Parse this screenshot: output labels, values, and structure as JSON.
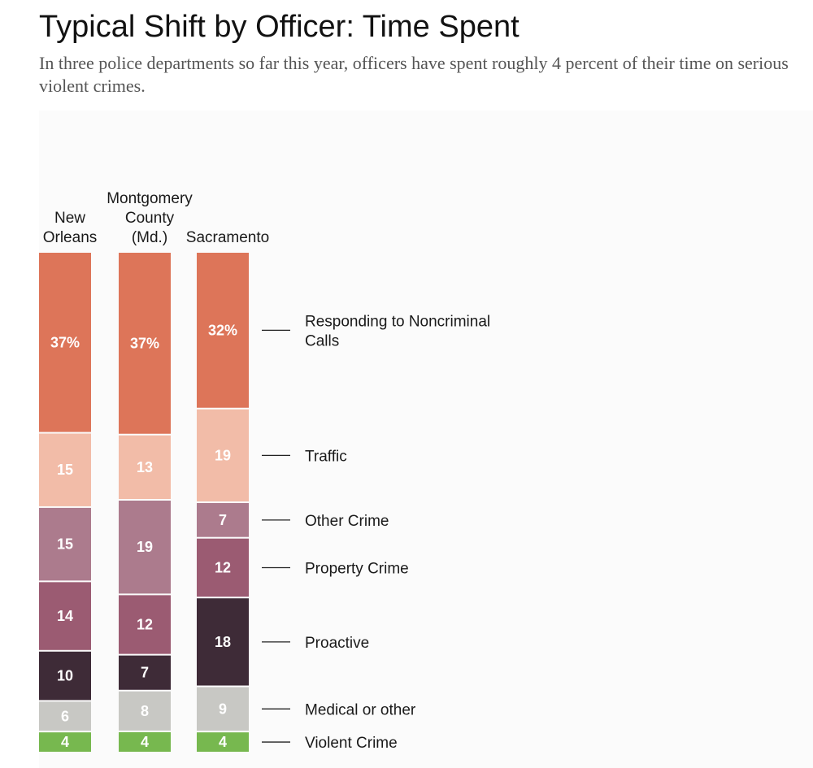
{
  "title": "Typical Shift by Officer: Time Spent",
  "subtitle": "In three police departments so far this year, officers have spent roughly 4 percent of their time on serious violent crimes.",
  "chart_data": {
    "type": "bar",
    "stacked": true,
    "orientation": "vertical",
    "unit": "percent",
    "columns": [
      {
        "label_lines": [
          "New",
          "Orleans"
        ],
        "values": [
          37,
          15,
          15,
          14,
          10,
          6,
          4
        ],
        "labels": [
          "37%",
          "15",
          "15",
          "14",
          "10",
          "6",
          "4"
        ]
      },
      {
        "label_lines": [
          "Montgomery",
          "County",
          "(Md.)"
        ],
        "values": [
          37,
          13,
          19,
          12,
          7,
          8,
          4
        ],
        "labels": [
          "37%",
          "13",
          "19",
          "12",
          "7",
          "8",
          "4"
        ]
      },
      {
        "label_lines": [
          "Sacramento"
        ],
        "values": [
          32,
          19,
          7,
          12,
          18,
          9,
          4
        ],
        "labels": [
          "32%",
          "19",
          "7",
          "12",
          "18",
          "9",
          "4"
        ]
      }
    ],
    "categories": [
      {
        "lines": [
          "Responding to Noncriminal",
          "Calls"
        ],
        "color": "#dd7559",
        "label_color": "#ffffff"
      },
      {
        "lines": [
          "Traffic"
        ],
        "color": "#f2bca8",
        "label_color": "#ffffff"
      },
      {
        "lines": [
          "Other Crime"
        ],
        "color": "#ac7b8d",
        "label_color": "#ffffff"
      },
      {
        "lines": [
          "Property Crime"
        ],
        "color": "#9b5b72",
        "label_color": "#ffffff"
      },
      {
        "lines": [
          "Proactive"
        ],
        "color": "#3e2b37",
        "label_color": "#ffffff"
      },
      {
        "lines": [
          "Medical or other"
        ],
        "color": "#c8c8c4",
        "label_color": "#ffffff"
      },
      {
        "lines": [
          "Violent Crime"
        ],
        "color": "#77b84f",
        "label_color": "#ffffff"
      }
    ]
  }
}
